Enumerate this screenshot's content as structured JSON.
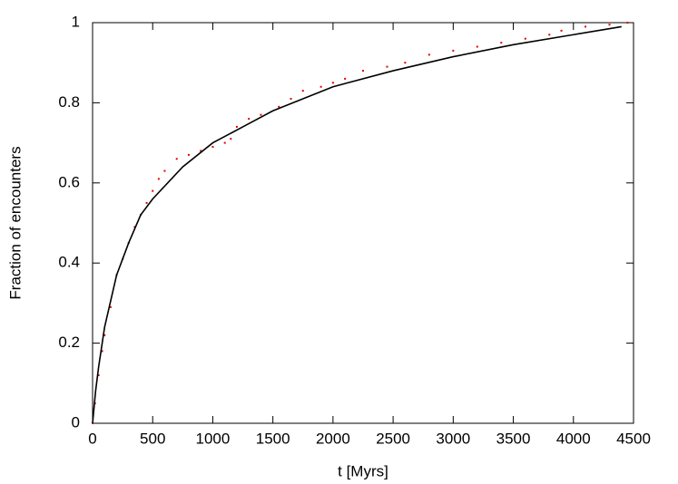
{
  "chart_data": {
    "type": "line",
    "xlabel": "t [Myrs]",
    "ylabel": "Fraction of encounters",
    "xlim": [
      0,
      4500
    ],
    "ylim": [
      0,
      1
    ],
    "xticks": [
      0,
      500,
      1000,
      1500,
      2000,
      2500,
      3000,
      3500,
      4000,
      4500
    ],
    "yticks": [
      0,
      0.2,
      0.4,
      0.6,
      0.8,
      1
    ],
    "mirror_ticks": true,
    "series": [
      {
        "color": "#e00000",
        "style": "points",
        "x": [
          0,
          20,
          50,
          80,
          100,
          150,
          200,
          250,
          300,
          350,
          400,
          450,
          500,
          550,
          600,
          700,
          800,
          900,
          1000,
          1100,
          1150,
          1200,
          1300,
          1400,
          1550,
          1650,
          1750,
          1900,
          2000,
          2100,
          2250,
          2450,
          2600,
          2800,
          3000,
          3200,
          3400,
          3600,
          3800,
          3900,
          4100,
          4300,
          4450
        ],
        "values": [
          0,
          0.05,
          0.12,
          0.18,
          0.22,
          0.29,
          0.37,
          0.41,
          0.45,
          0.49,
          0.52,
          0.55,
          0.58,
          0.61,
          0.63,
          0.66,
          0.67,
          0.68,
          0.69,
          0.7,
          0.71,
          0.74,
          0.76,
          0.77,
          0.79,
          0.81,
          0.83,
          0.84,
          0.85,
          0.86,
          0.88,
          0.89,
          0.9,
          0.92,
          0.93,
          0.94,
          0.95,
          0.96,
          0.97,
          0.98,
          0.99,
          0.995,
          1
        ]
      },
      {
        "color": "#000000",
        "style": "line",
        "x": [
          0,
          25,
          50,
          100,
          200,
          300,
          400,
          500,
          750,
          1000,
          1250,
          1500,
          2000,
          2500,
          3000,
          3500,
          4000,
          4400
        ],
        "values": [
          0,
          0.08,
          0.14,
          0.24,
          0.37,
          0.45,
          0.52,
          0.56,
          0.64,
          0.7,
          0.74,
          0.78,
          0.84,
          0.88,
          0.915,
          0.945,
          0.97,
          0.99
        ]
      }
    ]
  }
}
